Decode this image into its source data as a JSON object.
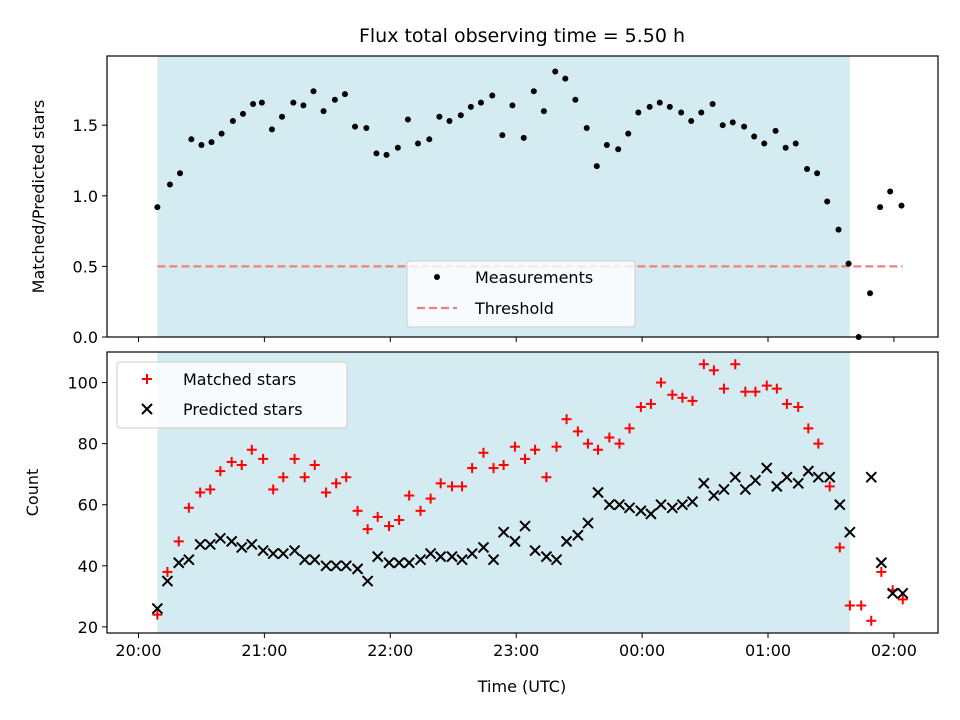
{
  "chart_data": {
    "title": "Flux total observing time = 5.50 h",
    "xlabel": "Time (UTC)",
    "x_ticks": [
      "20:00",
      "21:00",
      "22:00",
      "23:00",
      "00:00",
      "01:00",
      "02:00"
    ],
    "colors": {
      "shade": "#add8e6",
      "measurements": "#000000",
      "threshold": "#f08080",
      "matched": "#ff0000",
      "predicted": "#000000"
    },
    "charts": [
      {
        "type": "scatter",
        "ylabel": "Matched/Predicted stars",
        "ylim": [
          0,
          1.99
        ],
        "y_ticks": [
          "0.0",
          "0.5",
          "1.0",
          "1.5"
        ],
        "y_tick_values": [
          0,
          0.5,
          1.0,
          1.5
        ],
        "shaded_range_hours": [
          20.15,
          25.65
        ],
        "legend": {
          "placement": "bottom-center",
          "entries": [
            "Measurements",
            "Threshold"
          ]
        },
        "threshold": {
          "name": "Threshold",
          "value": 0.5
        },
        "series": [
          {
            "name": "Measurements",
            "points": [
              [
                20.15,
                0.92
              ],
              [
                20.25,
                1.08
              ],
              [
                20.33,
                1.16
              ],
              [
                20.42,
                1.4
              ],
              [
                20.5,
                1.36
              ],
              [
                20.58,
                1.38
              ],
              [
                20.66,
                1.44
              ],
              [
                20.75,
                1.53
              ],
              [
                20.83,
                1.58
              ],
              [
                20.91,
                1.65
              ],
              [
                20.98,
                1.66
              ],
              [
                21.06,
                1.47
              ],
              [
                21.14,
                1.56
              ],
              [
                21.23,
                1.66
              ],
              [
                21.31,
                1.64
              ],
              [
                21.39,
                1.74
              ],
              [
                21.47,
                1.6
              ],
              [
                21.56,
                1.68
              ],
              [
                21.64,
                1.72
              ],
              [
                21.72,
                1.49
              ],
              [
                21.81,
                1.48
              ],
              [
                21.89,
                1.3
              ],
              [
                21.97,
                1.29
              ],
              [
                22.06,
                1.34
              ],
              [
                22.14,
                1.54
              ],
              [
                22.22,
                1.37
              ],
              [
                22.31,
                1.4
              ],
              [
                22.39,
                1.56
              ],
              [
                22.47,
                1.53
              ],
              [
                22.56,
                1.57
              ],
              [
                22.64,
                1.63
              ],
              [
                22.72,
                1.66
              ],
              [
                22.81,
                1.71
              ],
              [
                22.89,
                1.43
              ],
              [
                22.97,
                1.64
              ],
              [
                23.06,
                1.41
              ],
              [
                23.14,
                1.74
              ],
              [
                23.22,
                1.6
              ],
              [
                23.31,
                1.88
              ],
              [
                23.39,
                1.83
              ],
              [
                23.47,
                1.68
              ],
              [
                23.56,
                1.48
              ],
              [
                23.64,
                1.21
              ],
              [
                23.72,
                1.36
              ],
              [
                23.81,
                1.33
              ],
              [
                23.89,
                1.44
              ],
              [
                23.97,
                1.59
              ],
              [
                24.06,
                1.63
              ],
              [
                24.14,
                1.66
              ],
              [
                24.22,
                1.63
              ],
              [
                24.31,
                1.59
              ],
              [
                24.39,
                1.53
              ],
              [
                24.47,
                1.59
              ],
              [
                24.56,
                1.65
              ],
              [
                24.64,
                1.5
              ],
              [
                24.72,
                1.52
              ],
              [
                24.81,
                1.49
              ],
              [
                24.89,
                1.42
              ],
              [
                24.97,
                1.37
              ],
              [
                25.06,
                1.46
              ],
              [
                25.14,
                1.34
              ],
              [
                25.22,
                1.37
              ],
              [
                25.31,
                1.19
              ],
              [
                25.39,
                1.16
              ],
              [
                25.47,
                0.96
              ],
              [
                25.56,
                0.76
              ],
              [
                25.64,
                0.52
              ],
              [
                25.72,
                0.0
              ],
              [
                25.81,
                0.31
              ],
              [
                25.89,
                0.92
              ],
              [
                25.97,
                1.03
              ],
              [
                26.06,
                0.93
              ]
            ]
          }
        ]
      },
      {
        "type": "scatter",
        "ylabel": "Count",
        "ylim": [
          18,
          110
        ],
        "y_ticks": [
          "20",
          "40",
          "60",
          "80",
          "100"
        ],
        "y_tick_values": [
          20,
          40,
          60,
          80,
          100
        ],
        "shaded_range_hours": [
          20.15,
          25.65
        ],
        "legend": {
          "placement": "top-left",
          "entries": [
            "Matched stars",
            "Predicted stars"
          ]
        },
        "series": [
          {
            "name": "Matched stars",
            "marker": "+",
            "points": [
              [
                20.15,
                24
              ],
              [
                20.23,
                38
              ],
              [
                20.32,
                48
              ],
              [
                20.4,
                59
              ],
              [
                20.49,
                64
              ],
              [
                20.57,
                65
              ],
              [
                20.65,
                71
              ],
              [
                20.74,
                74
              ],
              [
                20.82,
                73
              ],
              [
                20.9,
                78
              ],
              [
                20.99,
                75
              ],
              [
                21.07,
                65
              ],
              [
                21.15,
                69
              ],
              [
                21.24,
                75
              ],
              [
                21.32,
                69
              ],
              [
                21.4,
                73
              ],
              [
                21.49,
                64
              ],
              [
                21.57,
                67
              ],
              [
                21.65,
                69
              ],
              [
                21.74,
                58
              ],
              [
                21.82,
                52
              ],
              [
                21.9,
                56
              ],
              [
                21.99,
                53
              ],
              [
                22.07,
                55
              ],
              [
                22.15,
                63
              ],
              [
                22.24,
                58
              ],
              [
                22.32,
                62
              ],
              [
                22.4,
                67
              ],
              [
                22.49,
                66
              ],
              [
                22.57,
                66
              ],
              [
                22.65,
                72
              ],
              [
                22.74,
                77
              ],
              [
                22.82,
                72
              ],
              [
                22.9,
                73
              ],
              [
                22.99,
                79
              ],
              [
                23.07,
                75
              ],
              [
                23.15,
                78
              ],
              [
                23.24,
                69
              ],
              [
                23.32,
                79
              ],
              [
                23.4,
                88
              ],
              [
                23.49,
                84
              ],
              [
                23.57,
                80
              ],
              [
                23.65,
                78
              ],
              [
                23.74,
                82
              ],
              [
                23.82,
                80
              ],
              [
                23.9,
                85
              ],
              [
                23.99,
                92
              ],
              [
                24.07,
                93
              ],
              [
                24.15,
                100
              ],
              [
                24.24,
                96
              ],
              [
                24.32,
                95
              ],
              [
                24.4,
                94
              ],
              [
                24.49,
                106
              ],
              [
                24.57,
                104
              ],
              [
                24.65,
                98
              ],
              [
                24.74,
                106
              ],
              [
                24.82,
                97
              ],
              [
                24.9,
                97
              ],
              [
                24.99,
                99
              ],
              [
                25.07,
                98
              ],
              [
                25.15,
                93
              ],
              [
                25.24,
                92
              ],
              [
                25.32,
                85
              ],
              [
                25.4,
                80
              ],
              [
                25.49,
                66
              ],
              [
                25.57,
                46
              ],
              [
                25.65,
                27
              ],
              [
                25.74,
                27
              ],
              [
                25.82,
                22
              ],
              [
                25.9,
                38
              ],
              [
                25.99,
                32
              ],
              [
                26.07,
                29
              ]
            ]
          },
          {
            "name": "Predicted stars",
            "marker": "x",
            "points": [
              [
                20.15,
                26
              ],
              [
                20.23,
                35
              ],
              [
                20.32,
                41
              ],
              [
                20.4,
                42
              ],
              [
                20.49,
                47
              ],
              [
                20.57,
                47
              ],
              [
                20.65,
                49
              ],
              [
                20.74,
                48
              ],
              [
                20.82,
                46
              ],
              [
                20.9,
                47
              ],
              [
                20.99,
                45
              ],
              [
                21.07,
                44
              ],
              [
                21.15,
                44
              ],
              [
                21.24,
                45
              ],
              [
                21.32,
                42
              ],
              [
                21.4,
                42
              ],
              [
                21.49,
                40
              ],
              [
                21.57,
                40
              ],
              [
                21.65,
                40
              ],
              [
                21.74,
                39
              ],
              [
                21.82,
                35
              ],
              [
                21.9,
                43
              ],
              [
                21.99,
                41
              ],
              [
                22.07,
                41
              ],
              [
                22.15,
                41
              ],
              [
                22.24,
                42
              ],
              [
                22.32,
                44
              ],
              [
                22.4,
                43
              ],
              [
                22.49,
                43
              ],
              [
                22.57,
                42
              ],
              [
                22.65,
                44
              ],
              [
                22.74,
                46
              ],
              [
                22.82,
                42
              ],
              [
                22.9,
                51
              ],
              [
                22.99,
                48
              ],
              [
                23.07,
                53
              ],
              [
                23.15,
                45
              ],
              [
                23.24,
                43
              ],
              [
                23.32,
                42
              ],
              [
                23.4,
                48
              ],
              [
                23.49,
                50
              ],
              [
                23.57,
                54
              ],
              [
                23.65,
                64
              ],
              [
                23.74,
                60
              ],
              [
                23.82,
                60
              ],
              [
                23.9,
                59
              ],
              [
                23.99,
                58
              ],
              [
                24.07,
                57
              ],
              [
                24.15,
                60
              ],
              [
                24.24,
                59
              ],
              [
                24.32,
                60
              ],
              [
                24.4,
                61
              ],
              [
                24.49,
                67
              ],
              [
                24.57,
                63
              ],
              [
                24.65,
                65
              ],
              [
                24.74,
                69
              ],
              [
                24.82,
                65
              ],
              [
                24.9,
                68
              ],
              [
                24.99,
                72
              ],
              [
                25.07,
                66
              ],
              [
                25.15,
                69
              ],
              [
                25.24,
                67
              ],
              [
                25.32,
                71
              ],
              [
                25.4,
                69
              ],
              [
                25.49,
                69
              ],
              [
                25.57,
                60
              ],
              [
                25.65,
                51
              ],
              [
                25.82,
                69
              ],
              [
                25.9,
                41
              ],
              [
                25.99,
                31
              ],
              [
                26.07,
                31
              ]
            ]
          }
        ]
      }
    ]
  }
}
